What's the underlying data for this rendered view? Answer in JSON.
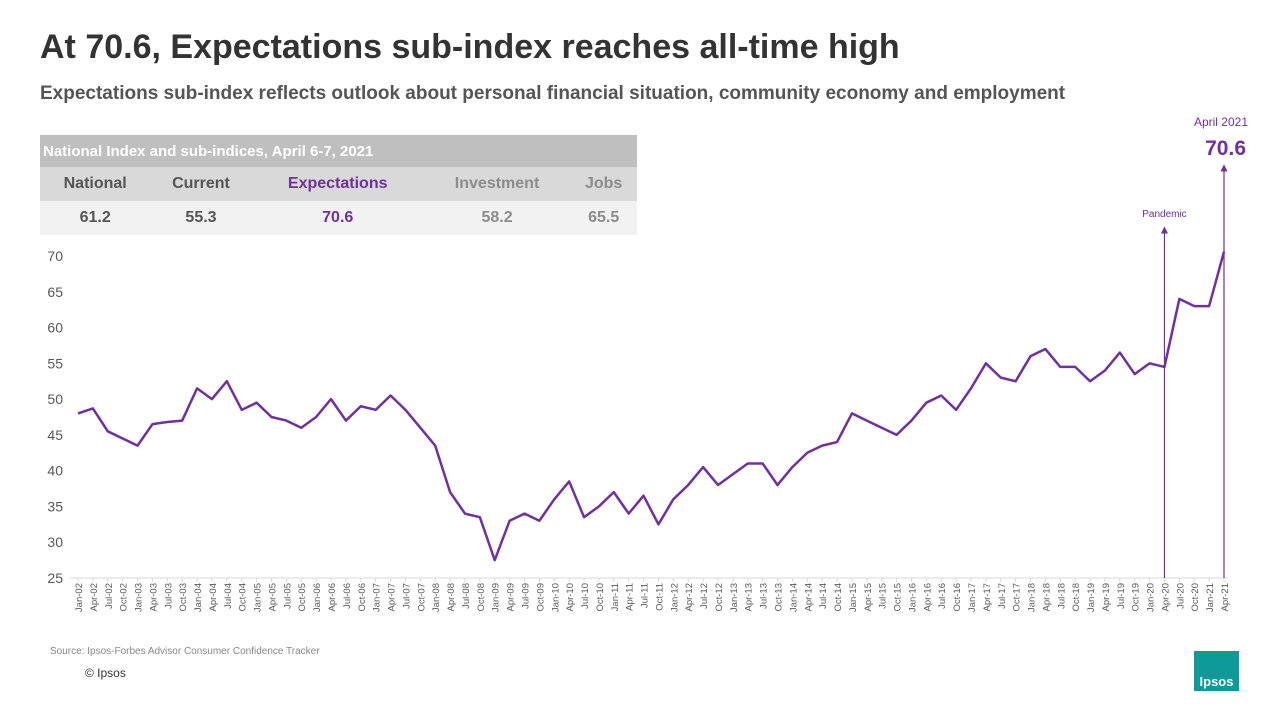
{
  "header": {
    "title": "At 70.6, Expectations sub-index reaches all-time high",
    "subtitle": "Expectations sub-index reflects outlook about personal financial situation, community economy and employment"
  },
  "table": {
    "title": "National Index and sub-indices, April 6-7, 2021",
    "headers": [
      "National",
      "Current",
      "Expectations",
      "Investment",
      "Jobs"
    ],
    "rows": [
      [
        "61.2",
        "55.3",
        "70.6",
        "58.2",
        "65.5"
      ]
    ],
    "highlight": "Expectations"
  },
  "chart_data": {
    "type": "line",
    "color": "#7030a0",
    "categories": [
      "Jan-02",
      "Apr-02",
      "Jul-02",
      "Oct-02",
      "Jan-03",
      "Apr-03",
      "Jul-03",
      "Oct-03",
      "Jan-04",
      "Apr-04",
      "Jul-04",
      "Oct-04",
      "Jan-05",
      "Apr-05",
      "Jul-05",
      "Oct-05",
      "Jan-06",
      "Apr-06",
      "Jul-06",
      "Oct-06",
      "Jan-07",
      "Apr-07",
      "Jul-07",
      "Oct-07",
      "Jan-08",
      "Apr-08",
      "Jul-08",
      "Oct-08",
      "Jan-09",
      "Apr-09",
      "Jul-09",
      "Oct-09",
      "Jan-10",
      "Apr-10",
      "Jul-10",
      "Oct-10",
      "Jan-11",
      "Apr-11",
      "Jul-11",
      "Oct-11",
      "Jan-12",
      "Apr-12",
      "Jul-12",
      "Oct-12",
      "Jan-13",
      "Apr-13",
      "Jul-13",
      "Oct-13",
      "Jan-14",
      "Apr-14",
      "Jul-14",
      "Oct-14",
      "Jan-15",
      "Apr-15",
      "Jul-15",
      "Oct-15",
      "Jan-16",
      "Apr-16",
      "Jul-16",
      "Oct-16",
      "Jan-17",
      "Apr-17",
      "Jul-17",
      "Oct-17",
      "Jan-18",
      "Apr-18",
      "Jul-18",
      "Oct-18",
      "Jan-19",
      "Apr-19",
      "Jul-19",
      "Oct-19",
      "Jan-20",
      "Apr-20",
      "Jul-20",
      "Oct-20",
      "Jan-21",
      "Apr-21"
    ],
    "values": [
      48,
      48.7,
      45.5,
      44.5,
      43.5,
      46.5,
      46.8,
      47,
      51.5,
      50,
      52.5,
      48.5,
      49.5,
      47.5,
      47,
      46,
      47.5,
      50,
      47,
      49,
      48.5,
      50.5,
      48.5,
      46,
      43.5,
      37,
      34,
      33.5,
      27.5,
      33,
      34,
      33,
      36,
      38.5,
      33.5,
      35,
      37,
      34,
      36.5,
      32.5,
      36,
      38,
      40.5,
      38,
      39.5,
      41,
      41,
      38,
      40.5,
      42.5,
      43.5,
      44,
      48,
      47,
      46,
      45,
      47,
      49.5,
      50.5,
      48.5,
      51.5,
      55,
      53,
      52.5,
      56,
      57,
      54.5,
      54.5,
      52.5,
      54,
      56.5,
      53.5,
      55,
      54.5,
      64,
      63,
      63,
      70.6
    ],
    "ylim": [
      25,
      70
    ],
    "yticks": [
      25,
      30,
      35,
      40,
      45,
      50,
      55,
      60,
      65,
      70
    ],
    "annotations": [
      {
        "text": "Pandemic",
        "x": "Apr-20"
      },
      {
        "text": "April 2021",
        "x": "Apr-21",
        "value": 70.6
      }
    ]
  },
  "footer": {
    "source": "Source: Ipsos-Forbes Advisor Consumer Confidence Tracker",
    "copyright": "© Ipsos",
    "logo": "Ipsos"
  }
}
